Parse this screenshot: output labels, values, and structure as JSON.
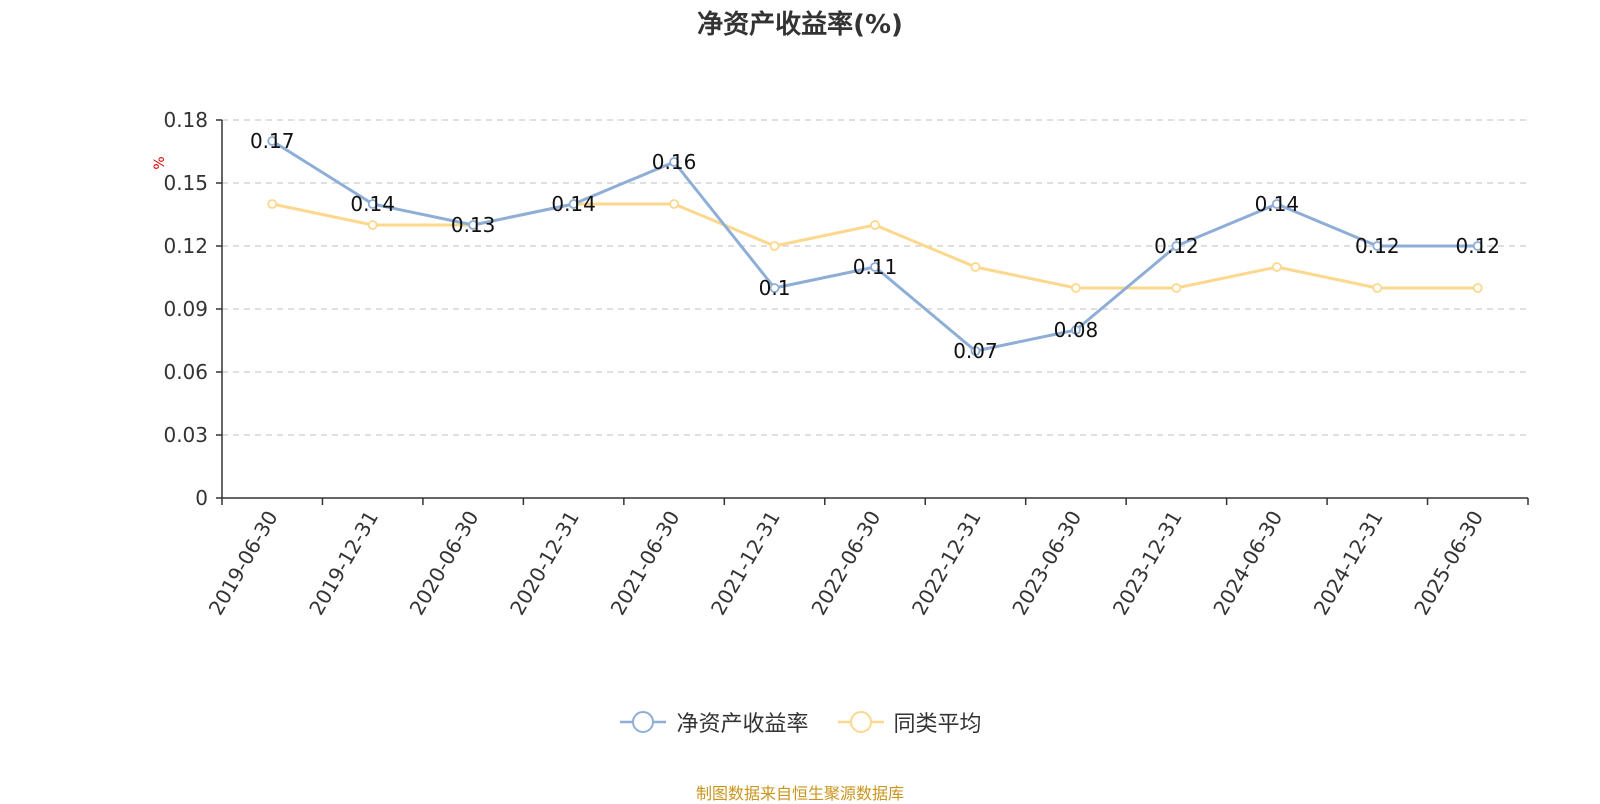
{
  "chart_data": {
    "type": "line",
    "title": "净资产收益率(%)",
    "ylabel": "%",
    "ylim": [
      0,
      0.18
    ],
    "yticks": [
      "0",
      "0.03",
      "0.06",
      "0.09",
      "0.12",
      "0.15",
      "0.18"
    ],
    "grid": true,
    "legend_position": "bottom",
    "categories": [
      "2019-06-30",
      "2019-12-31",
      "2020-06-30",
      "2020-12-31",
      "2021-06-30",
      "2021-12-31",
      "2022-06-30",
      "2022-12-31",
      "2023-06-30",
      "2023-12-31",
      "2024-06-30",
      "2024-12-31",
      "2025-06-30"
    ],
    "series": [
      {
        "name": "净资产收益率",
        "color": "#8eaed8",
        "values": [
          0.17,
          0.14,
          0.13,
          0.14,
          0.16,
          0.1,
          0.11,
          0.07,
          0.08,
          0.12,
          0.14,
          0.12,
          0.12
        ],
        "labels": [
          "0.17",
          "0.14",
          "0.13",
          "0.14",
          "0.16",
          "0.1",
          "0.11",
          "0.07",
          "0.08",
          "0.12",
          "0.14",
          "0.12",
          "0.12"
        ]
      },
      {
        "name": "同类平均",
        "color": "#fbd88d",
        "values": [
          0.14,
          0.13,
          0.13,
          0.14,
          0.14,
          0.12,
          0.13,
          0.11,
          0.1,
          0.1,
          0.11,
          0.1,
          0.1
        ]
      }
    ]
  },
  "source_note": "制图数据来自恒生聚源数据库"
}
